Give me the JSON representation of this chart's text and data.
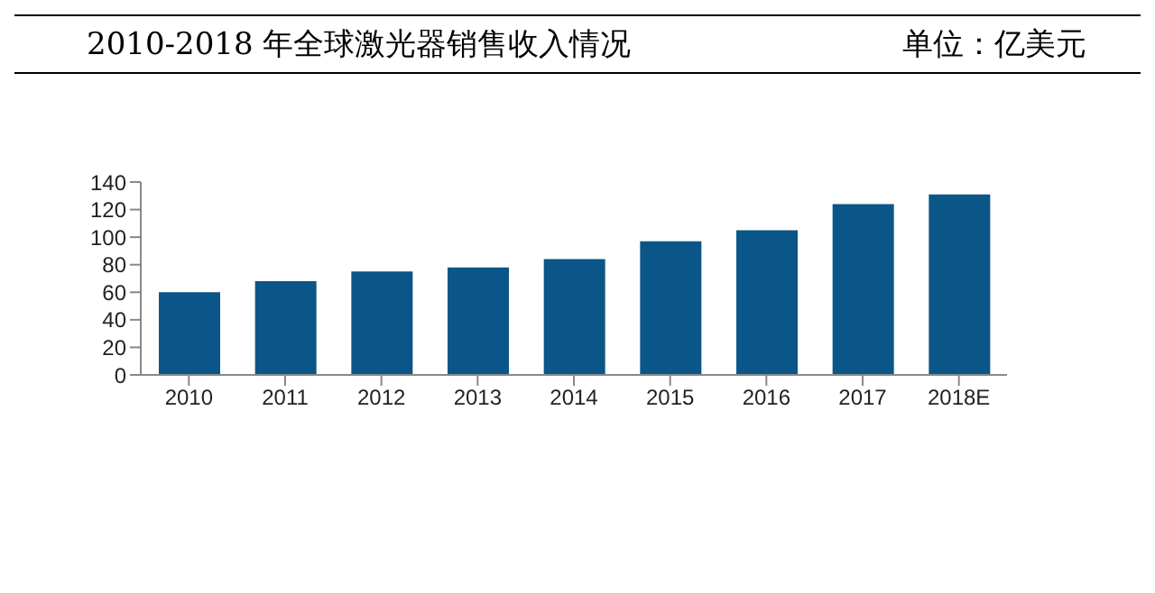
{
  "chart_data": {
    "type": "bar",
    "title": "2010-2018 年全球激光器销售收入情况",
    "subtitle": "单位：亿美元",
    "categories": [
      "2010",
      "2011",
      "2012",
      "2013",
      "2014",
      "2015",
      "2016",
      "2017",
      "2018E"
    ],
    "values": [
      60,
      68,
      75,
      78,
      84,
      97,
      105,
      124,
      131
    ],
    "color": "#0b5688",
    "ylim": [
      0,
      140
    ],
    "yticks": [
      0,
      20,
      40,
      60,
      80,
      100,
      120,
      140
    ],
    "grid": false,
    "legend": false
  }
}
